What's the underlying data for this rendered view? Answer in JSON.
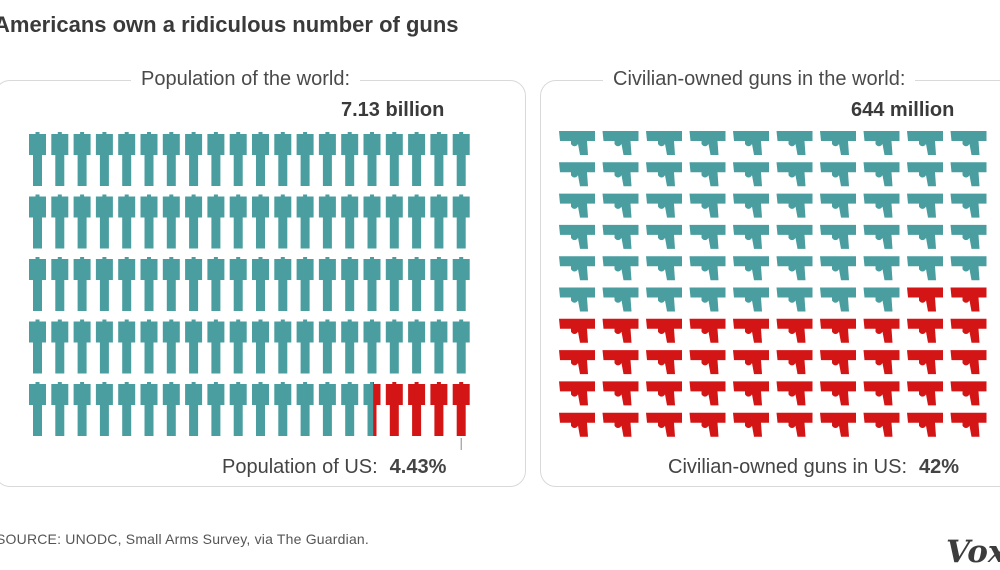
{
  "headline": "Americans own a ridiculous number of guns",
  "source": "SOURCE: UNODC, Small Arms Survey, via The Guardian.",
  "logo": "Vox",
  "colors": {
    "world": "#4a9ea0",
    "us": "#d31515",
    "border": "#d9d9d9"
  },
  "chart_data": [
    {
      "type": "pictograph",
      "icon": "person-icon",
      "title": "Population of the world:",
      "total_label": "7.13 billion",
      "us_label": "Population of US:",
      "us_value_label": "4.43%",
      "us_share_percent": 4.43,
      "rows": 5,
      "columns": 20,
      "icons_total": 100,
      "icons_us": 4.43
    },
    {
      "type": "pictograph",
      "icon": "handgun-icon",
      "title": "Civilian-owned guns in the world:",
      "total_label": "644 million",
      "us_label": "Civilian-owned guns in US:",
      "us_value_label": "42%",
      "us_share_percent": 42,
      "rows": 10,
      "columns": 10,
      "icons_total": 100,
      "icons_us": 42
    }
  ]
}
